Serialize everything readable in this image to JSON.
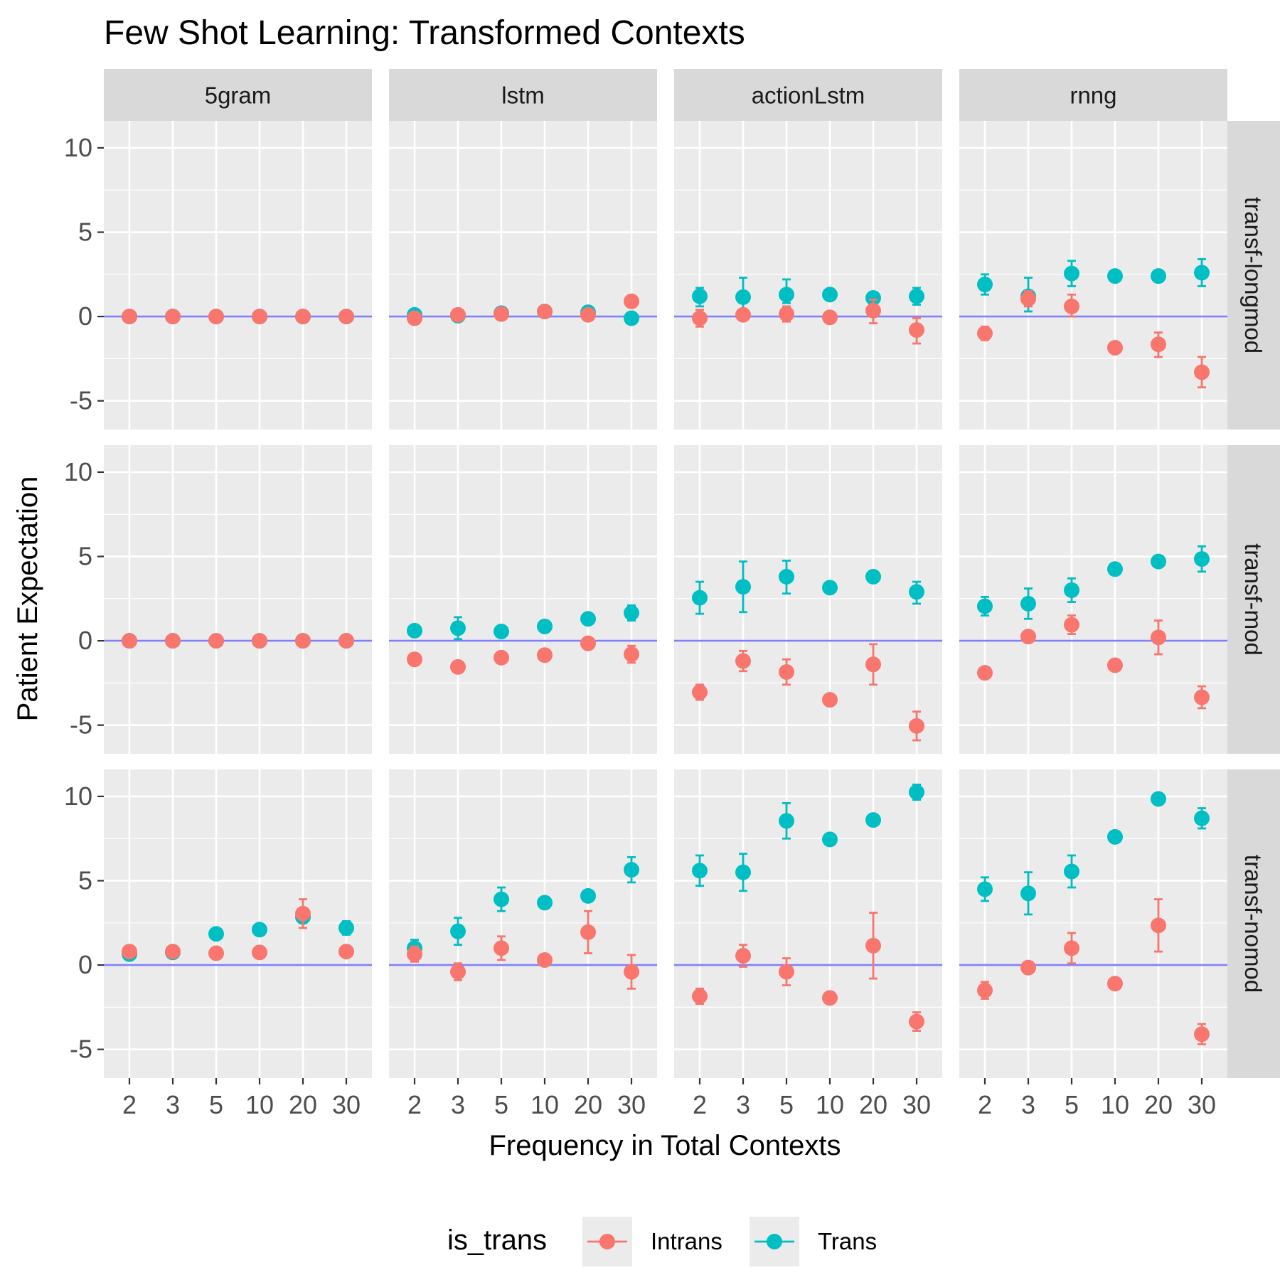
{
  "chart_data": {
    "type": "scatter",
    "title": "Few Shot Learning: Transformed Contexts",
    "xlabel": "Frequency in Total Contexts",
    "ylabel": "Patient Expectation",
    "x_categories": [
      "2",
      "3",
      "5",
      "10",
      "20",
      "30"
    ],
    "ylim": [
      -6.7,
      11.6
    ],
    "y_ticks": [
      -5,
      0,
      5,
      10
    ],
    "y_tick_labels": [
      "-5",
      "0",
      "5",
      "10"
    ],
    "reference_line_y": 0,
    "grid": true,
    "columns": [
      "5gram",
      "lstm",
      "actionLstm",
      "rnng"
    ],
    "rows": [
      "transf-longmod",
      "transf-mod",
      "transf-nomod"
    ],
    "legend": {
      "title": "is_trans",
      "position": "bottom",
      "entries": [
        {
          "label": "Intrans",
          "color": "#F8766D"
        },
        {
          "label": "Trans",
          "color": "#00BFC4"
        }
      ]
    },
    "colors": {
      "Intrans": "#F8766D",
      "Trans": "#00BFC4",
      "reference_line": "#8080FF",
      "panel_bg": "#EBEBEB",
      "strip_bg": "#D9D9D9"
    },
    "panels": [
      {
        "row": "transf-longmod",
        "col": "5gram",
        "Trans": [
          [
            0,
            0,
            0
          ],
          [
            0,
            0,
            0
          ],
          [
            0,
            0,
            0
          ],
          [
            0,
            0,
            0
          ],
          [
            0,
            0,
            0
          ],
          [
            0,
            0,
            0
          ]
        ],
        "Intrans": [
          [
            0,
            0,
            0
          ],
          [
            0,
            0,
            0
          ],
          [
            0,
            0,
            0
          ],
          [
            0,
            0,
            0
          ],
          [
            0,
            0,
            0
          ],
          [
            0,
            0,
            0
          ]
        ]
      },
      {
        "row": "transf-longmod",
        "col": "lstm",
        "Trans": [
          [
            0.1,
            0.05,
            0.15
          ],
          [
            0.05,
            0,
            0.1
          ],
          [
            0.2,
            0.1,
            0.3
          ],
          [
            0.3,
            0.2,
            0.4
          ],
          [
            0.25,
            0.15,
            0.35
          ],
          [
            -0.1,
            -0.2,
            0
          ]
        ],
        "Intrans": [
          [
            -0.1,
            -0.2,
            0
          ],
          [
            0.1,
            0,
            0.2
          ],
          [
            0.15,
            0.05,
            0.25
          ],
          [
            0.3,
            0.2,
            0.4
          ],
          [
            0.1,
            0,
            0.2
          ],
          [
            0.9,
            0.8,
            1.0
          ]
        ]
      },
      {
        "row": "transf-longmod",
        "col": "actionLstm",
        "Trans": [
          [
            1.2,
            0.6,
            1.7
          ],
          [
            1.15,
            0.4,
            2.3
          ],
          [
            1.3,
            0.8,
            2.2
          ],
          [
            1.3,
            1.3,
            1.3
          ],
          [
            1.1,
            1.1,
            1.1
          ],
          [
            1.2,
            0.7,
            1.7
          ]
        ],
        "Intrans": [
          [
            -0.1,
            -0.6,
            0.4
          ],
          [
            0.1,
            0.1,
            0.1
          ],
          [
            0.15,
            -0.3,
            0.6
          ],
          [
            -0.05,
            -0.05,
            -0.05
          ],
          [
            0.35,
            -0.4,
            1.0
          ],
          [
            -0.8,
            -1.6,
            -0.1
          ]
        ]
      },
      {
        "row": "transf-longmod",
        "col": "rnng",
        "Trans": [
          [
            1.9,
            1.3,
            2.5
          ],
          [
            1.2,
            0.3,
            2.3
          ],
          [
            2.55,
            1.8,
            3.3
          ],
          [
            2.4,
            2.4,
            2.4
          ],
          [
            2.4,
            2.4,
            2.4
          ],
          [
            2.6,
            1.8,
            3.4
          ]
        ],
        "Intrans": [
          [
            -1.0,
            -1.4,
            -0.6
          ],
          [
            1.05,
            0.6,
            1.5
          ],
          [
            0.6,
            0.0,
            1.3
          ],
          [
            -1.85,
            -1.85,
            -1.85
          ],
          [
            -1.65,
            -2.4,
            -0.95
          ],
          [
            -3.3,
            -4.2,
            -2.4
          ]
        ]
      },
      {
        "row": "transf-mod",
        "col": "5gram",
        "Trans": [
          [
            0,
            0,
            0
          ],
          [
            0,
            0,
            0
          ],
          [
            0,
            0,
            0
          ],
          [
            0,
            0,
            0
          ],
          [
            0,
            0,
            0
          ],
          [
            0,
            0,
            0
          ]
        ],
        "Intrans": [
          [
            0,
            0,
            0
          ],
          [
            0,
            0,
            0
          ],
          [
            0,
            0,
            0
          ],
          [
            0,
            0,
            0
          ],
          [
            0,
            0,
            0
          ],
          [
            0,
            0,
            0
          ]
        ]
      },
      {
        "row": "transf-mod",
        "col": "lstm",
        "Trans": [
          [
            0.6,
            0.6,
            0.6
          ],
          [
            0.75,
            0.1,
            1.4
          ],
          [
            0.55,
            0.55,
            0.55
          ],
          [
            0.85,
            0.85,
            0.85
          ],
          [
            1.3,
            1.3,
            1.3
          ],
          [
            1.65,
            1.2,
            2.1
          ]
        ],
        "Intrans": [
          [
            -1.1,
            -1.1,
            -1.1
          ],
          [
            -1.55,
            -1.55,
            -1.55
          ],
          [
            -1.0,
            -1.0,
            -1.0
          ],
          [
            -0.85,
            -0.85,
            -0.85
          ],
          [
            -0.15,
            -0.15,
            -0.15
          ],
          [
            -0.8,
            -1.3,
            -0.3
          ]
        ]
      },
      {
        "row": "transf-mod",
        "col": "actionLstm",
        "Trans": [
          [
            2.55,
            1.6,
            3.5
          ],
          [
            3.2,
            1.7,
            4.7
          ],
          [
            3.8,
            2.8,
            4.75
          ],
          [
            3.15,
            3.15,
            3.15
          ],
          [
            3.8,
            3.8,
            3.8
          ],
          [
            2.9,
            2.2,
            3.5
          ]
        ],
        "Intrans": [
          [
            -3.05,
            -3.5,
            -2.6
          ],
          [
            -1.2,
            -1.8,
            -0.6
          ],
          [
            -1.85,
            -2.6,
            -1.1
          ],
          [
            -3.5,
            -3.5,
            -3.5
          ],
          [
            -1.4,
            -2.6,
            -0.2
          ],
          [
            -5.05,
            -5.9,
            -4.2
          ]
        ]
      },
      {
        "row": "transf-mod",
        "col": "rnng",
        "Trans": [
          [
            2.05,
            1.5,
            2.6
          ],
          [
            2.2,
            1.3,
            3.1
          ],
          [
            3.0,
            2.3,
            3.7
          ],
          [
            4.25,
            4.25,
            4.25
          ],
          [
            4.7,
            4.7,
            4.7
          ],
          [
            4.85,
            4.1,
            5.6
          ]
        ],
        "Intrans": [
          [
            -1.9,
            -1.9,
            -1.9
          ],
          [
            0.25,
            0.25,
            0.25
          ],
          [
            0.95,
            0.4,
            1.5
          ],
          [
            -1.45,
            -1.45,
            -1.45
          ],
          [
            0.2,
            -0.8,
            1.2
          ],
          [
            -3.35,
            -4.0,
            -2.7
          ]
        ]
      },
      {
        "row": "transf-nomod",
        "col": "5gram",
        "Trans": [
          [
            0.65,
            0.65,
            0.65
          ],
          [
            0.75,
            0.75,
            0.75
          ],
          [
            1.85,
            1.85,
            1.85
          ],
          [
            2.1,
            2.1,
            2.1
          ],
          [
            2.85,
            2.5,
            3.2
          ],
          [
            2.2,
            1.8,
            2.6
          ]
        ],
        "Intrans": [
          [
            0.8,
            0.8,
            0.8
          ],
          [
            0.8,
            0.8,
            0.8
          ],
          [
            0.7,
            0.7,
            0.7
          ],
          [
            0.75,
            0.75,
            0.75
          ],
          [
            3.05,
            2.2,
            3.9
          ],
          [
            0.8,
            0.8,
            0.8
          ]
        ]
      },
      {
        "row": "transf-nomod",
        "col": "lstm",
        "Trans": [
          [
            1.0,
            0.5,
            1.5
          ],
          [
            2.0,
            1.2,
            2.8
          ],
          [
            3.9,
            3.2,
            4.6
          ],
          [
            3.7,
            3.7,
            3.7
          ],
          [
            4.1,
            4.1,
            4.1
          ],
          [
            5.65,
            4.9,
            6.4
          ]
        ],
        "Intrans": [
          [
            0.65,
            0.2,
            1.1
          ],
          [
            -0.4,
            -0.9,
            0.1
          ],
          [
            1.0,
            0.3,
            1.7
          ],
          [
            0.3,
            0.3,
            0.3
          ],
          [
            1.95,
            0.7,
            3.2
          ],
          [
            -0.4,
            -1.4,
            0.6
          ]
        ]
      },
      {
        "row": "transf-nomod",
        "col": "actionLstm",
        "Trans": [
          [
            5.6,
            4.7,
            6.5
          ],
          [
            5.5,
            4.4,
            6.6
          ],
          [
            8.55,
            7.5,
            9.6
          ],
          [
            7.45,
            7.45,
            7.45
          ],
          [
            8.6,
            8.6,
            8.6
          ],
          [
            10.25,
            9.8,
            10.7
          ]
        ],
        "Intrans": [
          [
            -1.85,
            -2.3,
            -1.4
          ],
          [
            0.55,
            -0.1,
            1.2
          ],
          [
            -0.4,
            -1.2,
            0.4
          ],
          [
            -1.95,
            -1.95,
            -1.95
          ],
          [
            1.15,
            -0.8,
            3.1
          ],
          [
            -3.35,
            -3.9,
            -2.8
          ]
        ]
      },
      {
        "row": "transf-nomod",
        "col": "rnng",
        "Trans": [
          [
            4.5,
            3.8,
            5.2
          ],
          [
            4.25,
            3.0,
            5.5
          ],
          [
            5.55,
            4.6,
            6.5
          ],
          [
            7.6,
            7.6,
            7.6
          ],
          [
            9.85,
            9.85,
            9.85
          ],
          [
            8.7,
            8.1,
            9.3
          ]
        ],
        "Intrans": [
          [
            -1.5,
            -2.0,
            -1.0
          ],
          [
            -0.15,
            -0.4,
            0.1
          ],
          [
            1.0,
            0.1,
            1.9
          ],
          [
            -1.1,
            -1.1,
            -1.1
          ],
          [
            2.35,
            0.8,
            3.9
          ],
          [
            -4.1,
            -4.7,
            -3.5
          ]
        ]
      }
    ]
  }
}
